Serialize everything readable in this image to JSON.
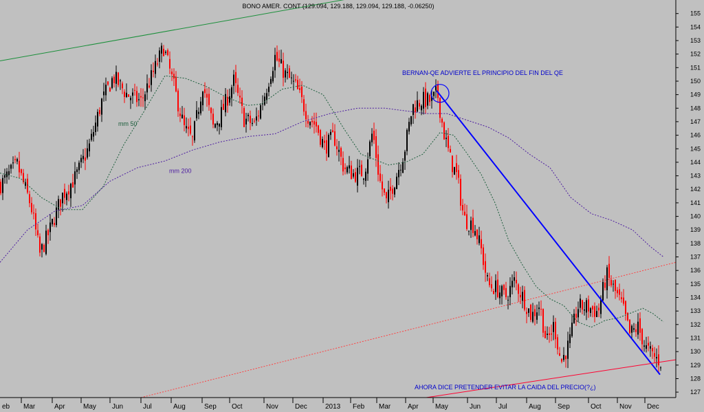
{
  "chart_data": {
    "type": "candlestick",
    "title": "BONO AMER. CONT (129.094, 129.188, 129.094, 129.188, -0.06250)",
    "y_axis": {
      "position": "right",
      "range": [
        126.6,
        156.0
      ],
      "ticks": [
        127,
        128,
        129,
        130,
        131,
        132,
        133,
        134,
        135,
        136,
        137,
        138,
        139,
        140,
        141,
        142,
        143,
        144,
        145,
        146,
        147,
        148,
        149,
        150,
        151,
        152,
        153,
        154,
        155
      ]
    },
    "x_axis": {
      "ticks": [
        "eb",
        "Mar",
        "Apr",
        "May",
        "Jun",
        "Jul",
        "Aug",
        "Sep",
        "Oct",
        "Nov",
        "Dec",
        "2013",
        "Feb",
        "Mar",
        "Apr",
        "May",
        "Jun",
        "Jul",
        "Aug",
        "Sep",
        "Oct",
        "Nov",
        "Dec"
      ]
    },
    "grid": false,
    "colors": {
      "background": "#c0c0c0",
      "up_candle": "#000000",
      "down_candle": "#ff0000",
      "mm50": "#1a5c3a",
      "mm200": "#4b1aa0",
      "trend_upper": "#1a8f3a",
      "trend_down": "#0000ff",
      "support": "#ff0030",
      "channel": "#ff4040",
      "annotation_text": "#0000cc"
    },
    "anchors": [
      [
        0,
        142.3
      ],
      [
        25,
        143.8
      ],
      [
        45,
        140.8
      ],
      [
        58,
        137.2
      ],
      [
        72,
        138.9
      ],
      [
        90,
        141.5
      ],
      [
        110,
        142.9
      ],
      [
        130,
        145.2
      ],
      [
        148,
        148.5
      ],
      [
        165,
        150.3
      ],
      [
        185,
        149.0
      ],
      [
        205,
        148.5
      ],
      [
        222,
        150.5
      ],
      [
        238,
        152.5
      ],
      [
        252,
        149.8
      ],
      [
        268,
        146.5
      ],
      [
        280,
        145.6
      ],
      [
        295,
        149.8
      ],
      [
        310,
        146.6
      ],
      [
        322,
        147.6
      ],
      [
        340,
        150.0
      ],
      [
        355,
        147.2
      ],
      [
        370,
        146.8
      ],
      [
        385,
        149.0
      ],
      [
        400,
        151.8
      ],
      [
        415,
        150.5
      ],
      [
        430,
        149.6
      ],
      [
        448,
        147.4
      ],
      [
        460,
        146.7
      ],
      [
        472,
        145.1
      ],
      [
        486,
        145.9
      ],
      [
        500,
        143.6
      ],
      [
        515,
        143.1
      ],
      [
        530,
        143.3
      ],
      [
        542,
        146.3
      ],
      [
        552,
        142.7
      ],
      [
        562,
        141.0
      ],
      [
        575,
        142.8
      ],
      [
        588,
        144.8
      ],
      [
        600,
        148.1
      ],
      [
        614,
        148.6
      ],
      [
        628,
        148.5
      ],
      [
        636,
        149.2
      ],
      [
        645,
        146.3
      ],
      [
        655,
        144.2
      ],
      [
        665,
        142.9
      ],
      [
        675,
        139.8
      ],
      [
        690,
        139.3
      ],
      [
        700,
        137.5
      ],
      [
        710,
        134.9
      ],
      [
        722,
        134.7
      ],
      [
        735,
        134.0
      ],
      [
        748,
        135.2
      ],
      [
        760,
        134.1
      ],
      [
        773,
        132.6
      ],
      [
        785,
        133.5
      ],
      [
        795,
        130.6
      ],
      [
        806,
        132.0
      ],
      [
        816,
        129.2
      ],
      [
        828,
        130.6
      ],
      [
        840,
        133.3
      ],
      [
        855,
        133.3
      ],
      [
        870,
        132.9
      ],
      [
        882,
        135.7
      ],
      [
        894,
        134.5
      ],
      [
        905,
        133.4
      ],
      [
        916,
        131.3
      ],
      [
        928,
        131.8
      ],
      [
        940,
        130.2
      ],
      [
        952,
        129.6
      ],
      [
        962,
        129.2
      ]
    ],
    "mm50": [
      [
        0,
        143.2
      ],
      [
        30,
        142.8
      ],
      [
        60,
        141.4
      ],
      [
        90,
        140.5
      ],
      [
        120,
        140.5
      ],
      [
        150,
        142.2
      ],
      [
        180,
        145.3
      ],
      [
        210,
        147.8
      ],
      [
        240,
        150.4
      ],
      [
        270,
        150.2
      ],
      [
        300,
        149.6
      ],
      [
        330,
        148.8
      ],
      [
        360,
        148.2
      ],
      [
        380,
        148.3
      ],
      [
        410,
        149.4
      ],
      [
        440,
        149.7
      ],
      [
        470,
        149.0
      ],
      [
        500,
        146.5
      ],
      [
        525,
        144.6
      ],
      [
        545,
        144.2
      ],
      [
        565,
        143.8
      ],
      [
        590,
        144.0
      ],
      [
        615,
        144.6
      ],
      [
        640,
        146.2
      ],
      [
        660,
        146.0
      ],
      [
        680,
        144.6
      ],
      [
        700,
        143.1
      ],
      [
        720,
        141.0
      ],
      [
        740,
        138.2
      ],
      [
        760,
        136.4
      ],
      [
        780,
        134.8
      ],
      [
        800,
        133.9
      ],
      [
        820,
        133.4
      ],
      [
        840,
        132.2
      ],
      [
        860,
        131.8
      ],
      [
        880,
        132.3
      ],
      [
        900,
        132.5
      ],
      [
        920,
        132.9
      ],
      [
        935,
        133.2
      ],
      [
        950,
        132.8
      ],
      [
        965,
        132.2
      ]
    ],
    "mm200": [
      [
        0,
        136.6
      ],
      [
        40,
        139.0
      ],
      [
        80,
        140.4
      ],
      [
        120,
        140.8
      ],
      [
        160,
        142.6
      ],
      [
        200,
        143.6
      ],
      [
        240,
        144.1
      ],
      [
        280,
        144.9
      ],
      [
        320,
        145.5
      ],
      [
        360,
        145.9
      ],
      [
        400,
        146.1
      ],
      [
        440,
        147.0
      ],
      [
        480,
        147.6
      ],
      [
        520,
        148.0
      ],
      [
        560,
        148.0
      ],
      [
        590,
        147.8
      ],
      [
        620,
        147.6
      ],
      [
        650,
        147.6
      ],
      [
        680,
        147.1
      ],
      [
        710,
        146.6
      ],
      [
        740,
        145.8
      ],
      [
        770,
        144.6
      ],
      [
        800,
        143.6
      ],
      [
        830,
        141.4
      ],
      [
        860,
        140.2
      ],
      [
        890,
        139.7
      ],
      [
        920,
        139.0
      ],
      [
        945,
        137.8
      ],
      [
        965,
        137.0
      ]
    ],
    "lines": {
      "upper_trend": [
        [
          0,
          151.5
        ],
        [
          520,
          156.2
        ]
      ],
      "blue_downtrend": [
        [
          635,
          149.3
        ],
        [
          960,
          128.3
        ]
      ],
      "support": [
        [
          620,
          126.6
        ],
        [
          983,
          129.4
        ]
      ],
      "channel": [
        [
          205,
          126.6
        ],
        [
          983,
          136.6
        ]
      ]
    },
    "annotations": [
      {
        "text": "BERNAN-QE ADVIERTE EL PRINCIPIO DEL FIN DEL QE",
        "x": 585,
        "y": 150.45
      },
      {
        "text": "mm 50",
        "x": 172,
        "y": 146.7
      },
      {
        "text": "mm 200",
        "x": 246,
        "y": 143.2
      },
      {
        "text": "AHORA DICE PRETENDER EVITAR LA CAIDA DEL PRECIO(?¿)",
        "x": 603,
        "y": 127.2
      }
    ],
    "circle": {
      "x": 640,
      "y": 149.1
    }
  }
}
